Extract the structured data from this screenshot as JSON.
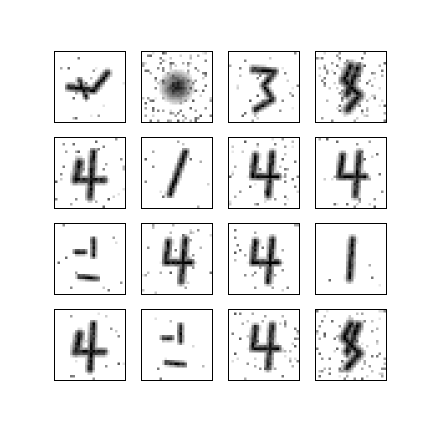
{
  "figure": {
    "description_none": "",
    "tiles": [
      {
        "id": "r1c1",
        "digit": "",
        "noise": 0.06,
        "ink": "#111111",
        "shape": "scribble"
      },
      {
        "id": "r1c2",
        "digit": "",
        "noise": 0.55,
        "ink": "#111111",
        "shape": "blob"
      },
      {
        "id": "r1c3",
        "digit": "",
        "noise": 0.12,
        "ink": "#111111",
        "shape": "three"
      },
      {
        "id": "r1c4",
        "digit": "",
        "noise": 0.45,
        "ink": "#111111",
        "shape": "eight"
      },
      {
        "id": "r2c1",
        "digit": "",
        "noise": 0.1,
        "ink": "#111111",
        "shape": "four-messy"
      },
      {
        "id": "r2c2",
        "digit": "",
        "noise": 0.05,
        "ink": "#111111",
        "shape": "one-slant"
      },
      {
        "id": "r2c3",
        "digit": "",
        "noise": 0.22,
        "ink": "#111111",
        "shape": "four"
      },
      {
        "id": "r2c4",
        "digit": "",
        "noise": 0.14,
        "ink": "#111111",
        "shape": "four-light"
      },
      {
        "id": "r3c1",
        "digit": "",
        "noise": 0.04,
        "ink": "#111111",
        "shape": "dots"
      },
      {
        "id": "r3c2",
        "digit": "",
        "noise": 0.14,
        "ink": "#111111",
        "shape": "four"
      },
      {
        "id": "r3c3",
        "digit": "",
        "noise": 0.1,
        "ink": "#111111",
        "shape": "four-open"
      },
      {
        "id": "r3c4",
        "digit": "",
        "noise": 0.05,
        "ink": "#111111",
        "shape": "one"
      },
      {
        "id": "r4c1",
        "digit": "",
        "noise": 0.1,
        "ink": "#111111",
        "shape": "four-messy"
      },
      {
        "id": "r4c2",
        "digit": "",
        "noise": 0.05,
        "ink": "#111111",
        "shape": "dots2"
      },
      {
        "id": "r4c3",
        "digit": "",
        "noise": 0.18,
        "ink": "#111111",
        "shape": "four"
      },
      {
        "id": "r4c4",
        "digit": "",
        "noise": 0.35,
        "ink": "#111111",
        "shape": "eight"
      }
    ]
  }
}
